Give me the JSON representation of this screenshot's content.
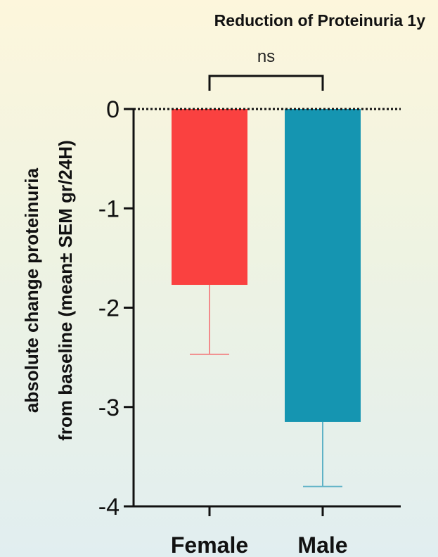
{
  "chart_data": {
    "type": "bar",
    "title": "Reduction of Proteinuria 1y",
    "ylabel_line1": "absolute change proteinuria",
    "ylabel_line2": "from baseline (mean± SEM gr/24H)",
    "xlabel": "",
    "categories": [
      "Female",
      "Male"
    ],
    "values": [
      -1.77,
      -3.15
    ],
    "errors": [
      0.7,
      0.65
    ],
    "colors": [
      "#fa4140",
      "#1595b1"
    ],
    "error_colors": [
      "#f28b8b",
      "#5fb2c6"
    ],
    "ylim": [
      -4,
      0
    ],
    "yticks": [
      0,
      -1,
      -2,
      -3,
      -4
    ],
    "ytick_labels": [
      "0",
      "-1",
      "-2",
      "-3",
      "-4"
    ],
    "significance": {
      "between": [
        "Female",
        "Male"
      ],
      "label": "ns"
    },
    "grid": false,
    "legend": "none"
  }
}
